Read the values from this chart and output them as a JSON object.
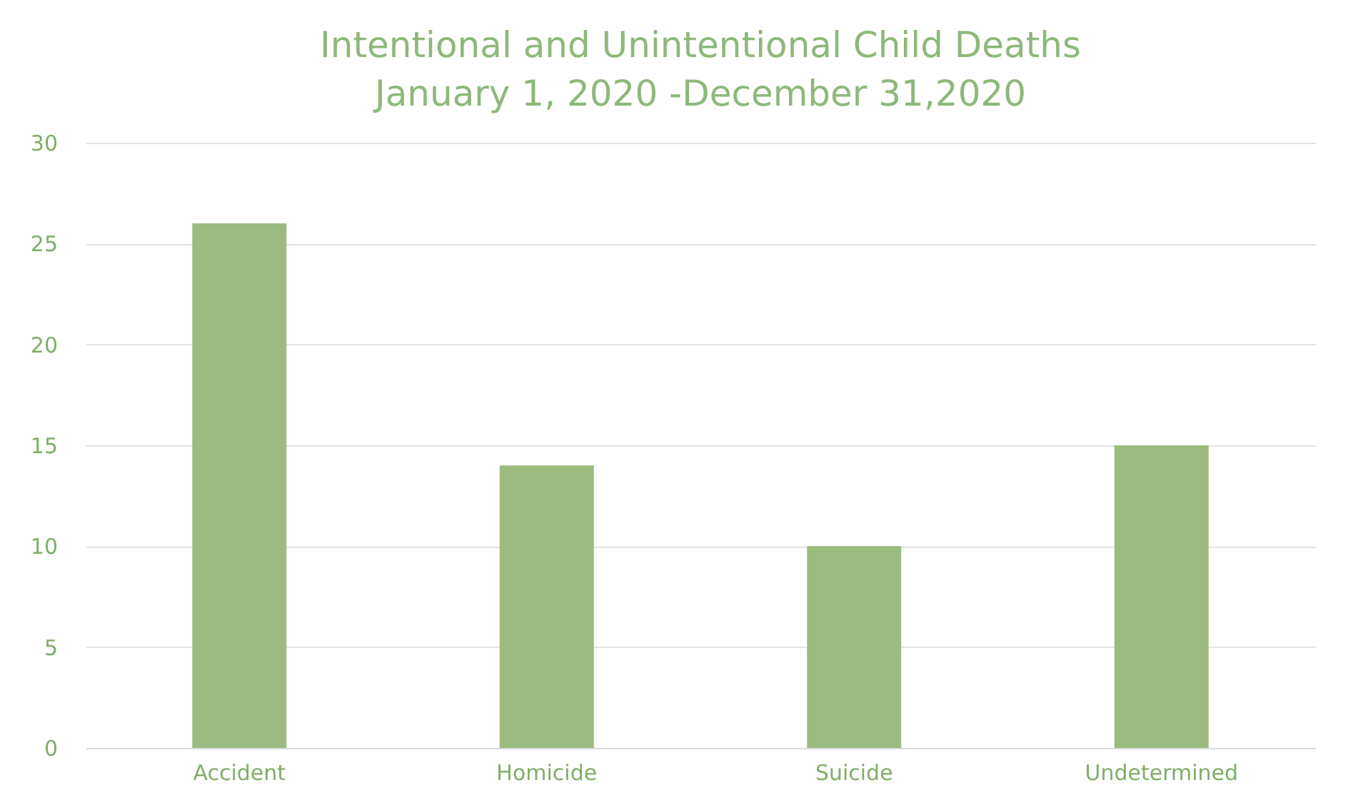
{
  "chart_data": {
    "type": "bar",
    "title": [
      "Intentional and Unintentional Child Deaths",
      "January 1, 2020 -December 31,2020"
    ],
    "categories": [
      "Accident",
      "Homicide",
      "Suicide",
      "Undetermined"
    ],
    "values": [
      26,
      14,
      10,
      15
    ],
    "color": "#9bbb7f",
    "ylim": [
      0,
      30
    ],
    "yticks": [
      0,
      5,
      10,
      15,
      20,
      25,
      30
    ],
    "grid": "y"
  }
}
